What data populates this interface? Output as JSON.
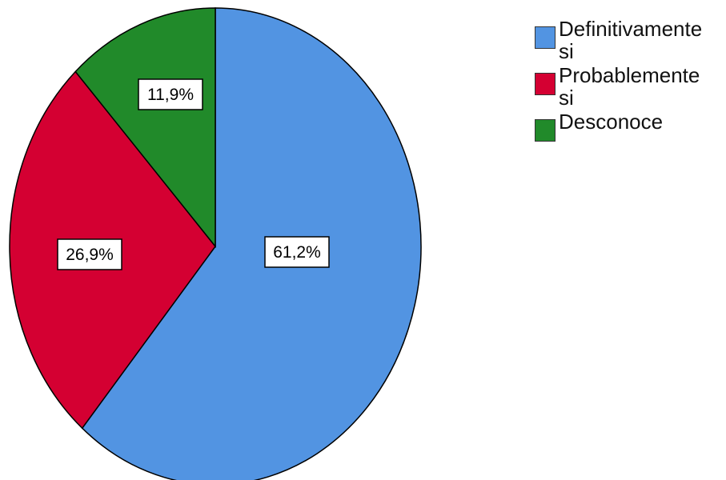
{
  "chart_data": {
    "type": "pie",
    "title": "",
    "slices": [
      {
        "label": "Definitivamente si",
        "value": 61.2,
        "display": "61,2%",
        "color": "#5294e2"
      },
      {
        "label": "Probablemente si",
        "value": 26.9,
        "display": "26,9%",
        "color": "#d40032"
      },
      {
        "label": "Desconoce",
        "value": 11.9,
        "display": "11,9%",
        "color": "#218a2a"
      }
    ],
    "start_angle": "12 o'clock",
    "direction": "clockwise",
    "legend": {
      "placement": "top-right",
      "entries": [
        "Definitivamente si",
        "Probablemente si",
        "Desconoce"
      ]
    }
  }
}
